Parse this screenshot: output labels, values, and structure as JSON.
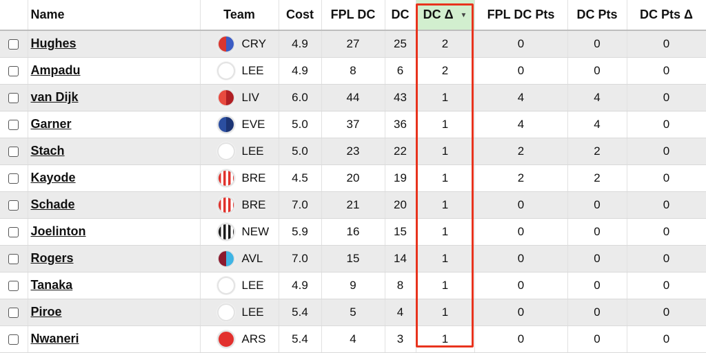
{
  "columns": {
    "name": "Name",
    "team": "Team",
    "cost": "Cost",
    "fpl_dc": "FPL DC",
    "dc": "DC",
    "dc_delta": "DC Δ",
    "fpl_dc_pts": "FPL DC Pts",
    "dc_pts": "DC Pts",
    "dc_pts_delta": "DC Pts Δ"
  },
  "sort": {
    "column": "dc_delta",
    "direction": "descending",
    "highlight_color": "#d2efcf",
    "box_color": "#e8331d"
  },
  "players": [
    {
      "name": "Hughes",
      "team": "CRY",
      "badge": "cry",
      "cost": "4.9",
      "fpl_dc": "27",
      "dc": "25",
      "dc_delta": "2",
      "fpl_dc_pts": "0",
      "dc_pts": "0",
      "dc_pts_delta": "0"
    },
    {
      "name": "Ampadu",
      "team": "LEE",
      "badge": "lee",
      "cost": "4.9",
      "fpl_dc": "8",
      "dc": "6",
      "dc_delta": "2",
      "fpl_dc_pts": "0",
      "dc_pts": "0",
      "dc_pts_delta": "0"
    },
    {
      "name": "van Dijk",
      "team": "LIV",
      "badge": "liv",
      "cost": "6.0",
      "fpl_dc": "44",
      "dc": "43",
      "dc_delta": "1",
      "fpl_dc_pts": "4",
      "dc_pts": "4",
      "dc_pts_delta": "0"
    },
    {
      "name": "Garner",
      "team": "EVE",
      "badge": "eve",
      "cost": "5.0",
      "fpl_dc": "37",
      "dc": "36",
      "dc_delta": "1",
      "fpl_dc_pts": "4",
      "dc_pts": "4",
      "dc_pts_delta": "0"
    },
    {
      "name": "Stach",
      "team": "LEE",
      "badge": "lee",
      "cost": "5.0",
      "fpl_dc": "23",
      "dc": "22",
      "dc_delta": "1",
      "fpl_dc_pts": "2",
      "dc_pts": "2",
      "dc_pts_delta": "0"
    },
    {
      "name": "Kayode",
      "team": "BRE",
      "badge": "bre",
      "cost": "4.5",
      "fpl_dc": "20",
      "dc": "19",
      "dc_delta": "1",
      "fpl_dc_pts": "2",
      "dc_pts": "2",
      "dc_pts_delta": "0"
    },
    {
      "name": "Schade",
      "team": "BRE",
      "badge": "bre",
      "cost": "7.0",
      "fpl_dc": "21",
      "dc": "20",
      "dc_delta": "1",
      "fpl_dc_pts": "0",
      "dc_pts": "0",
      "dc_pts_delta": "0"
    },
    {
      "name": "Joelinton",
      "team": "NEW",
      "badge": "new",
      "cost": "5.9",
      "fpl_dc": "16",
      "dc": "15",
      "dc_delta": "1",
      "fpl_dc_pts": "0",
      "dc_pts": "0",
      "dc_pts_delta": "0"
    },
    {
      "name": "Rogers",
      "team": "AVL",
      "badge": "avl",
      "cost": "7.0",
      "fpl_dc": "15",
      "dc": "14",
      "dc_delta": "1",
      "fpl_dc_pts": "0",
      "dc_pts": "0",
      "dc_pts_delta": "0"
    },
    {
      "name": "Tanaka",
      "team": "LEE",
      "badge": "lee",
      "cost": "4.9",
      "fpl_dc": "9",
      "dc": "8",
      "dc_delta": "1",
      "fpl_dc_pts": "0",
      "dc_pts": "0",
      "dc_pts_delta": "0"
    },
    {
      "name": "Piroe",
      "team": "LEE",
      "badge": "lee",
      "cost": "5.4",
      "fpl_dc": "5",
      "dc": "4",
      "dc_delta": "1",
      "fpl_dc_pts": "0",
      "dc_pts": "0",
      "dc_pts_delta": "0"
    },
    {
      "name": "Nwaneri",
      "team": "ARS",
      "badge": "ars",
      "cost": "5.4",
      "fpl_dc": "4",
      "dc": "3",
      "dc_delta": "1",
      "fpl_dc_pts": "0",
      "dc_pts": "0",
      "dc_pts_delta": "0"
    }
  ]
}
